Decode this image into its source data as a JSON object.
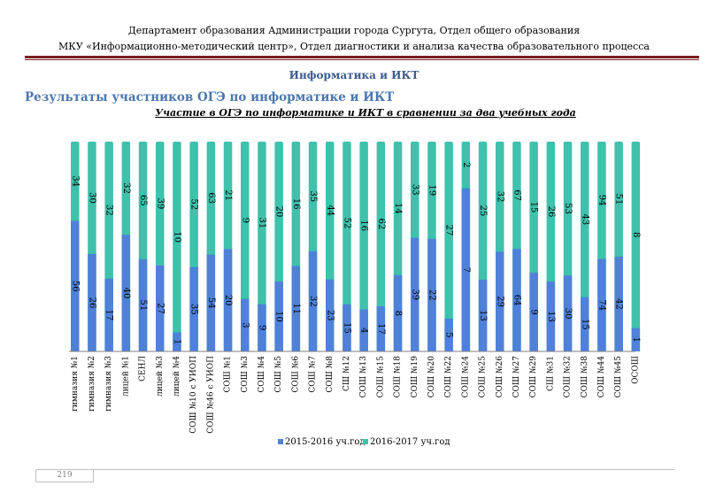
{
  "header": {
    "line1": "Департамент образования Администрации города Сургута, Отдел общего образования",
    "line2": "МКУ «Информационно-методический центр», Отдел диагностики и анализа качества образовательного процесса"
  },
  "subject_title": "Информатика и ИКТ",
  "section_title": "Результаты участников ОГЭ по информатике и ИКТ",
  "page_number": "219",
  "colors": {
    "series1": "#4f81d9",
    "series2": "#3fc1ac",
    "rule": "#7b1f1f"
  },
  "chart_data": {
    "type": "bar",
    "stacked": "percent",
    "title": "Участие в ОГЭ по информатике и ИКТ в сравнении за два учебных года",
    "legend_position": "bottom",
    "categories": [
      "гимназия №1",
      "гимназия №2",
      "гимназия №3",
      "лицей №1",
      "СЕНЛ",
      "лицей №3",
      "лицей №4",
      "СОШ №10 с УИОП",
      "СОШ №46 с УИОП",
      "СОШ №1",
      "СОШ №3",
      "СОШ №4",
      "СОШ №5",
      "СОШ №6",
      "СОШ №7",
      "СОШ №8",
      "СШ №12",
      "СОШ №13",
      "СОШ №15",
      "СОШ №18",
      "СОШ №19",
      "СОШ №20",
      "СОШ №22",
      "СОШ №24",
      "СОШ №25",
      "СОШ №26",
      "СОШ №27",
      "СОШ №29",
      "СШ №31",
      "СОШ №32",
      "СОШ №38",
      "СОШ №44",
      "СОШ №45",
      "ОСОШ"
    ],
    "series": [
      {
        "name": "2015-2016 уч.год",
        "values": [
          56,
          26,
          17,
          40,
          51,
          27,
          1,
          35,
          54,
          20,
          3,
          9,
          10,
          11,
          32,
          23,
          15,
          4,
          17,
          8,
          39,
          22,
          5,
          7,
          13,
          29,
          64,
          9,
          13,
          30,
          15,
          74,
          42,
          1
        ]
      },
      {
        "name": "2016-2017 уч.год",
        "values": [
          34,
          30,
          32,
          32,
          65,
          39,
          10,
          52,
          63,
          21,
          9,
          31,
          20,
          16,
          35,
          44,
          52,
          16,
          62,
          14,
          33,
          19,
          27,
          2,
          25,
          32,
          67,
          15,
          26,
          53,
          43,
          94,
          51,
          8
        ]
      }
    ]
  }
}
